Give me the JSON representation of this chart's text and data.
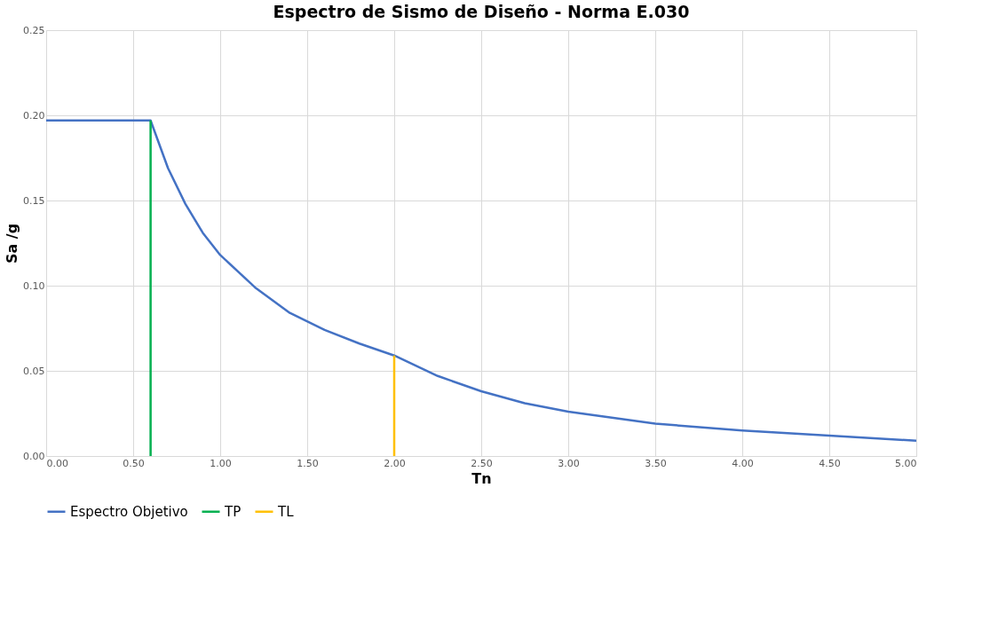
{
  "chart_data": {
    "type": "line",
    "title": "Espectro de Sismo de Diseño - Norma E.030",
    "xlabel": "Tn",
    "ylabel": "Sa /g",
    "series": [
      {
        "name": "Espectro Objetivo",
        "color": "#4472c4",
        "x": [
          0,
          0.6,
          0.7,
          0.8,
          0.9,
          1.0,
          1.2,
          1.4,
          1.6,
          1.8,
          2.0,
          2.25,
          2.5,
          2.75,
          3.0,
          3.5,
          4.0,
          4.5,
          5.0
        ],
        "values": [
          0.197,
          0.197,
          0.169,
          0.148,
          0.131,
          0.118,
          0.099,
          0.084,
          0.074,
          0.066,
          0.059,
          0.047,
          0.038,
          0.031,
          0.026,
          0.019,
          0.015,
          0.012,
          0.009
        ]
      },
      {
        "name": "TP",
        "color": "#00b050",
        "x": [
          0.6,
          0.6
        ],
        "values": [
          0,
          0.197
        ]
      },
      {
        "name": "TL",
        "color": "#ffc000",
        "x": [
          2.0,
          2.0
        ],
        "values": [
          0,
          0.059
        ]
      }
    ],
    "xlim": [
      0,
      5
    ],
    "ylim": [
      0,
      0.25
    ],
    "xticks": [
      {
        "value": 0,
        "label": "0.00"
      },
      {
        "value": 0.5,
        "label": "0.50"
      },
      {
        "value": 1,
        "label": "1.00"
      },
      {
        "value": 1.5,
        "label": "1.50"
      },
      {
        "value": 2,
        "label": "2.00"
      },
      {
        "value": 2.5,
        "label": "2.50"
      },
      {
        "value": 3,
        "label": "3.00"
      },
      {
        "value": 3.5,
        "label": "3.50"
      },
      {
        "value": 4,
        "label": "4.00"
      },
      {
        "value": 4.5,
        "label": "4.50"
      },
      {
        "value": 5,
        "label": "5.00"
      }
    ],
    "yticks": [
      {
        "value": 0,
        "label": "0.00"
      },
      {
        "value": 0.05,
        "label": "0.05"
      },
      {
        "value": 0.1,
        "label": "0.10"
      },
      {
        "value": 0.15,
        "label": "0.15"
      },
      {
        "value": 0.2,
        "label": "0.20"
      },
      {
        "value": 0.25,
        "label": "0.25"
      }
    ],
    "grid": true,
    "legend": "bottom",
    "marker": "none",
    "line_style": "solid"
  }
}
